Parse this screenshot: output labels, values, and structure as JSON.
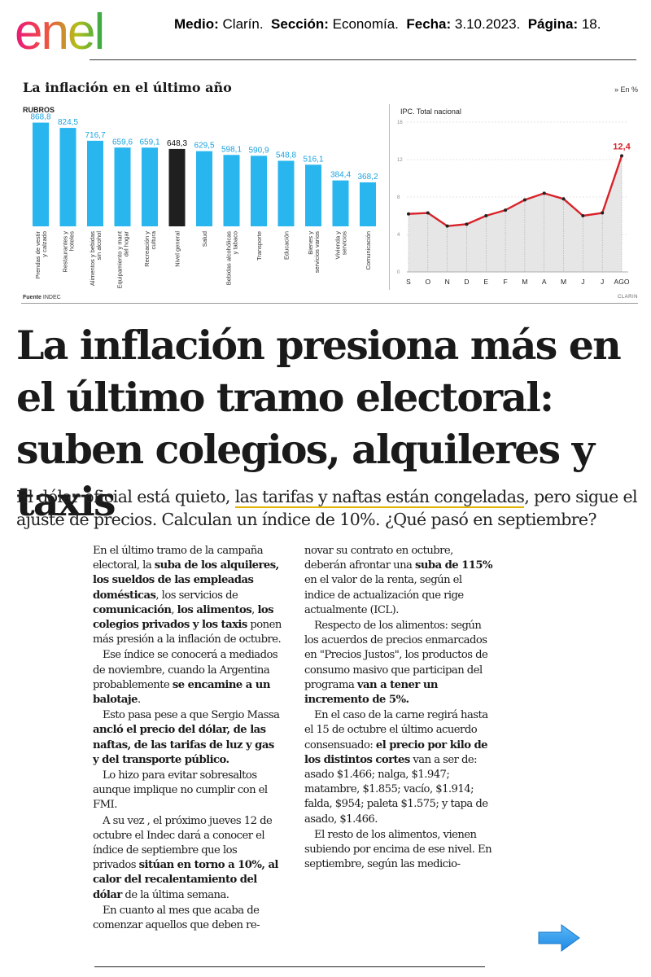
{
  "header": {
    "logo_text": "enel",
    "medio_label": "Medio:",
    "medio": "Clarín.",
    "seccion_label": "Sección:",
    "seccion": "Economía.",
    "fecha_label": "Fecha:",
    "fecha": "3.10.2023.",
    "pagina_label": "Página:",
    "pagina": "18."
  },
  "infographic": {
    "title": "La inflación en el último año",
    "unit_note": "» En %",
    "source_label": "Fuente",
    "source": "INDEC",
    "credit": "CLARIN"
  },
  "chart_data": [
    {
      "type": "bar",
      "title": "RUBROS",
      "categories": [
        "Prendas de vestir y calzado",
        "Restaurantes y hoteles",
        "Alimentos y bebidas sin alcohol",
        "Equipamiento y mant del hogar",
        "Recreación y cultura",
        "Nivel general",
        "Salud",
        "Bebidas alcohólicas y tabaco",
        "Transporte",
        "Educación",
        "Bienes y servicios varios",
        "Vivienda y servicios",
        "Comunicación"
      ],
      "values": [
        868.8,
        824.5,
        716.7,
        659.6,
        659.1,
        648.3,
        629.5,
        598.1,
        590.9,
        548.8,
        516.1,
        384.4,
        368.2
      ],
      "value_labels": [
        "868,8",
        "824,5",
        "716,7",
        "659,6",
        "659,1",
        "648,3",
        "629,5",
        "598,1",
        "590,9",
        "548,8",
        "516,1",
        "384,4",
        "368,2"
      ],
      "highlight": "Nivel general",
      "ylim": [
        0,
        900
      ],
      "colors": {
        "bar": "#29b6ef",
        "highlight": "#1f1f1f",
        "label": "#1aa3e0"
      }
    },
    {
      "type": "line",
      "title": "IPC. Total nacional",
      "categories": [
        "S",
        "O",
        "N",
        "D",
        "E",
        "F",
        "M",
        "A",
        "M",
        "J",
        "J",
        "AGO"
      ],
      "values": [
        6.2,
        6.3,
        4.9,
        5.1,
        6.0,
        6.6,
        7.7,
        8.4,
        7.8,
        6.0,
        6.3,
        12.4
      ],
      "ylim": [
        0,
        16
      ],
      "yticks": [
        0,
        4,
        8,
        12,
        16
      ],
      "annotation": "12,4",
      "colors": {
        "line": "#d8232a",
        "area": "#e6e6e6",
        "grid": "#cccccc"
      }
    }
  ],
  "article": {
    "headline": "La inflación presiona más en el último tramo electoral: suben colegios, alquileres y taxis",
    "subhead_before": "El dólar oficial está quieto,",
    "subhead_highlight": "las tarifas y naftas están congeladas",
    "subhead_after": ", pero sigue el ajuste de precios. Calculan un índice de 10%. ¿Qué pasó en septiembre?",
    "col1": [
      [
        {
          "t": "En el último tramo de la campaña electoral, la "
        },
        {
          "t": "suba de los alquileres, los sueldos de las empleadas domésticas",
          "b": true
        },
        {
          "t": ", los servicios de "
        },
        {
          "t": "comunicación",
          "b": true
        },
        {
          "t": ", "
        },
        {
          "t": "los alimentos",
          "b": true
        },
        {
          "t": ", "
        },
        {
          "t": "los colegios privados y los taxis",
          "b": true
        },
        {
          "t": " ponen más presión a la inflación de octubre."
        }
      ],
      [
        {
          "t": "Ese índice se conocerá a mediados de noviembre, cuando la Argentina probablemente "
        },
        {
          "t": "se encamine a un balotaje",
          "b": true
        },
        {
          "t": "."
        }
      ],
      [
        {
          "t": "Esto pasa pese a que Sergio Massa "
        },
        {
          "t": "ancló el precio del dólar, de las naftas, de las tarifas de luz y gas y del transporte público.",
          "b": true
        }
      ],
      [
        {
          "t": "Lo hizo para evitar sobresaltos aunque implique no cumplir con el FMI."
        }
      ],
      [
        {
          "t": "A su vez , el próximo jueves 12 de octubre el Indec dará a conocer el índice de septiembre que los privados "
        },
        {
          "t": "sitúan en torno a 10%, al calor del recalentamiento del dólar",
          "b": true
        },
        {
          "t": " de la última semana."
        }
      ],
      [
        {
          "t": "En cuanto al mes que acaba de comenzar aquellos que deben re-"
        }
      ]
    ],
    "col2": [
      [
        {
          "t": "novar su contrato en octubre, deberán afrontar una "
        },
        {
          "t": "suba de 115%",
          "b": true
        },
        {
          "t": " en el valor de la renta, según el indice de actualización que rige actualmente (ICL)."
        }
      ],
      [
        {
          "t": "Respecto de los alimentos: según los acuerdos de precios enmarcados en \"Precios Justos\", los productos de consumo masivo que participan del programa "
        },
        {
          "t": "van a tener un incremento de 5%.",
          "b": true
        }
      ],
      [
        {
          "t": "En el caso de la carne regirá hasta el 15 de octubre el último acuerdo consensuado: "
        },
        {
          "t": "el precio por kilo de los distintos cortes",
          "b": true
        },
        {
          "t": " van a ser de: asado $1.466; nalga, $1.947; matambre, $1.855; vacío, $1.914; falda, $954; paleta $1.575; y tapa de asado, $1.466."
        }
      ],
      [
        {
          "t": "El resto de los alimentos, vienen subiendo por encima de ese nivel. En septiembre, según las medicio-"
        }
      ]
    ],
    "next_icon": "arrow-right-icon"
  }
}
